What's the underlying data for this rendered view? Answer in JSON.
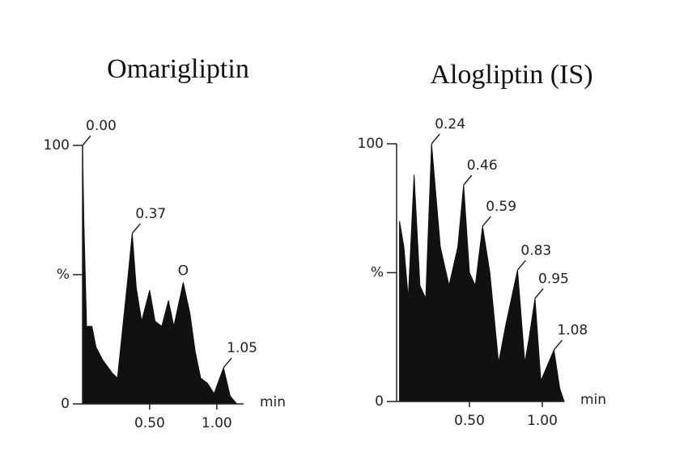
{
  "chart_data": [
    {
      "type": "area",
      "title": "Omarigliptin",
      "color": "#111111",
      "x": [
        0.0,
        0.01,
        0.03,
        0.07,
        0.1,
        0.15,
        0.22,
        0.26,
        0.3,
        0.34,
        0.37,
        0.4,
        0.44,
        0.5,
        0.54,
        0.59,
        0.64,
        0.68,
        0.75,
        0.8,
        0.84,
        0.88,
        0.93,
        0.98,
        1.05,
        1.1,
        1.15
      ],
      "values": [
        100,
        70,
        30,
        30,
        22,
        17,
        12,
        10,
        30,
        50,
        66,
        45,
        32,
        44,
        32,
        30,
        40,
        30,
        47,
        35,
        20,
        10,
        8,
        4,
        14,
        3,
        0
      ],
      "xlim": [
        0,
        1.2
      ],
      "ylim": [
        0,
        100
      ],
      "xticks": [
        {
          "value": 0.5,
          "label": "0.50"
        },
        {
          "value": 1.0,
          "label": "1.00"
        }
      ],
      "yticks": [
        0,
        {
          "value": 50,
          "label": "%"
        },
        100
      ],
      "xlabel": "min",
      "annotations": [
        {
          "text": "0.00",
          "x": 0.0,
          "y": 100
        },
        {
          "text": "0.37",
          "x": 0.37,
          "y": 66
        },
        {
          "text": "O",
          "x": 0.75,
          "y": 47
        },
        {
          "text": "1.05",
          "x": 1.05,
          "y": 14
        }
      ]
    },
    {
      "type": "area",
      "title": "Alogliptin (IS)",
      "color": "#111111",
      "x": [
        0.02,
        0.05,
        0.08,
        0.12,
        0.16,
        0.2,
        0.24,
        0.3,
        0.36,
        0.42,
        0.46,
        0.5,
        0.54,
        0.59,
        0.64,
        0.7,
        0.75,
        0.83,
        0.88,
        0.91,
        0.95,
        0.99,
        1.02,
        1.08,
        1.12,
        1.15
      ],
      "values": [
        70,
        60,
        40,
        88,
        45,
        40,
        100,
        60,
        45,
        60,
        84,
        50,
        45,
        68,
        50,
        15,
        30,
        51,
        15,
        25,
        40,
        8,
        12,
        20,
        5,
        0
      ],
      "xlim": [
        0,
        1.15
      ],
      "ylim": [
        0,
        100
      ],
      "xticks": [
        {
          "value": 0.5,
          "label": "0.50"
        },
        {
          "value": 1.0,
          "label": "1.00"
        }
      ],
      "yticks": [
        0,
        {
          "value": 50,
          "label": "%"
        },
        100
      ],
      "xlabel": "min",
      "annotations": [
        {
          "text": "0.24",
          "x": 0.24,
          "y": 100
        },
        {
          "text": "0.46",
          "x": 0.46,
          "y": 84
        },
        {
          "text": "0.59",
          "x": 0.59,
          "y": 68
        },
        {
          "text": "0.83",
          "x": 0.83,
          "y": 51
        },
        {
          "text": "0.95",
          "x": 0.95,
          "y": 40
        },
        {
          "text": "1.08",
          "x": 1.08,
          "y": 20
        }
      ]
    }
  ]
}
